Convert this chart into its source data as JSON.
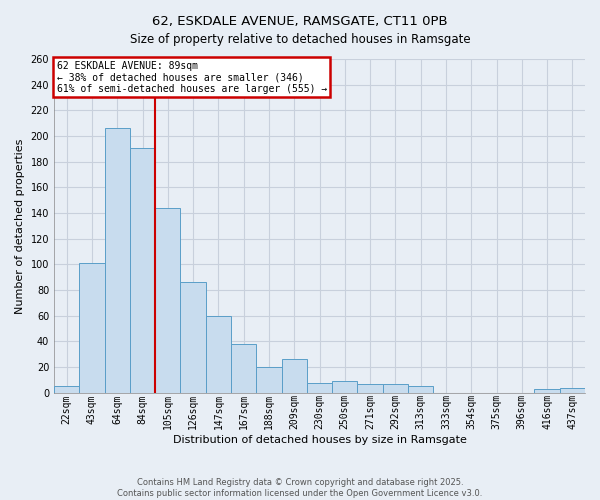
{
  "title": "62, ESKDALE AVENUE, RAMSGATE, CT11 0PB",
  "subtitle": "Size of property relative to detached houses in Ramsgate",
  "xlabel": "Distribution of detached houses by size in Ramsgate",
  "ylabel": "Number of detached properties",
  "bar_labels": [
    "22sqm",
    "43sqm",
    "64sqm",
    "84sqm",
    "105sqm",
    "126sqm",
    "147sqm",
    "167sqm",
    "188sqm",
    "209sqm",
    "230sqm",
    "250sqm",
    "271sqm",
    "292sqm",
    "313sqm",
    "333sqm",
    "354sqm",
    "375sqm",
    "396sqm",
    "416sqm",
    "437sqm"
  ],
  "bar_values": [
    5,
    101,
    206,
    191,
    144,
    86,
    60,
    38,
    20,
    26,
    8,
    9,
    7,
    7,
    5,
    0,
    0,
    0,
    0,
    3,
    4
  ],
  "bar_color": "#c8dcee",
  "bar_edge_color": "#5a9ec8",
  "vline_x_idx": 3,
  "vline_color": "#cc0000",
  "ylim": [
    0,
    260
  ],
  "yticks": [
    0,
    20,
    40,
    60,
    80,
    100,
    120,
    140,
    160,
    180,
    200,
    220,
    240,
    260
  ],
  "annotation_title": "62 ESKDALE AVENUE: 89sqm",
  "annotation_line2": "← 38% of detached houses are smaller (346)",
  "annotation_line3": "61% of semi-detached houses are larger (555) →",
  "annotation_box_color": "#cc0000",
  "footer_line1": "Contains HM Land Registry data © Crown copyright and database right 2025.",
  "footer_line2": "Contains public sector information licensed under the Open Government Licence v3.0.",
  "bg_color": "#e8eef5",
  "grid_color": "#c8d0dc",
  "title_fontsize": 9.5,
  "subtitle_fontsize": 8.5,
  "tick_fontsize": 7,
  "label_fontsize": 8,
  "footer_fontsize": 6
}
